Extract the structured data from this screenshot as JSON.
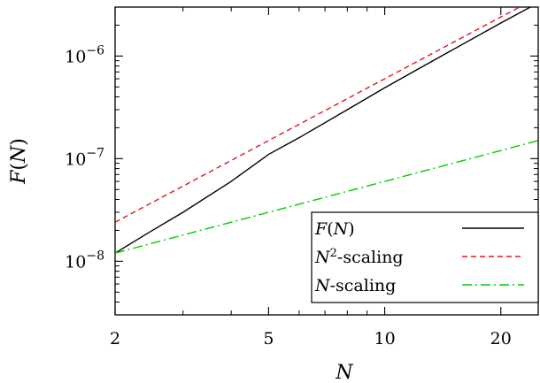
{
  "chart_data": {
    "type": "line",
    "title": "",
    "xlabel": "N",
    "ylabel": "F(N)",
    "xscale": "log",
    "yscale": "log",
    "xlim": [
      2,
      25
    ],
    "ylim": [
      3e-09,
      3e-06
    ],
    "x_ticks": [
      2,
      5,
      10,
      20
    ],
    "x_tick_labels": [
      "2",
      "5",
      "10",
      "20"
    ],
    "y_ticks": [
      1e-08,
      1e-07,
      1e-06
    ],
    "y_tick_labels": [
      {
        "base": "10",
        "exp": "−8"
      },
      {
        "base": "10",
        "exp": "−7"
      },
      {
        "base": "10",
        "exp": "−6"
      }
    ],
    "grid": false,
    "legend_position": "bottom-right",
    "series": [
      {
        "name": "F(N)",
        "legend_html": "<tspan font-style='italic'>F</tspan>(<tspan font-style='italic'>N</tspan>)",
        "color": "#000000",
        "dash": "solid",
        "x": [
          2,
          2.5,
          3,
          4,
          5,
          6,
          8,
          10,
          12,
          15,
          20,
          25
        ],
        "y": [
          1.2e-08,
          2e-08,
          3e-08,
          6e-08,
          1.1e-07,
          1.6e-07,
          3e-07,
          4.9e-07,
          7.2e-07,
          1.15e-06,
          2.1e-06,
          3.3e-06
        ]
      },
      {
        "name": "N2-scaling",
        "legend_html": "<tspan font-style='italic'>N</tspan><tspan baseline-shift='super' font-size='13'>2</tspan>-scaling",
        "color": "#e8141a",
        "dash": "dashed",
        "x": [
          2,
          25
        ],
        "y": [
          2.4e-08,
          3.75e-06
        ]
      },
      {
        "name": "N-scaling",
        "legend_html": "<tspan font-style='italic'>N</tspan>-scaling",
        "color": "#00cc00",
        "dash": "dashdot",
        "x": [
          2,
          25
        ],
        "y": [
          1.2e-08,
          1.5e-07
        ]
      }
    ]
  }
}
